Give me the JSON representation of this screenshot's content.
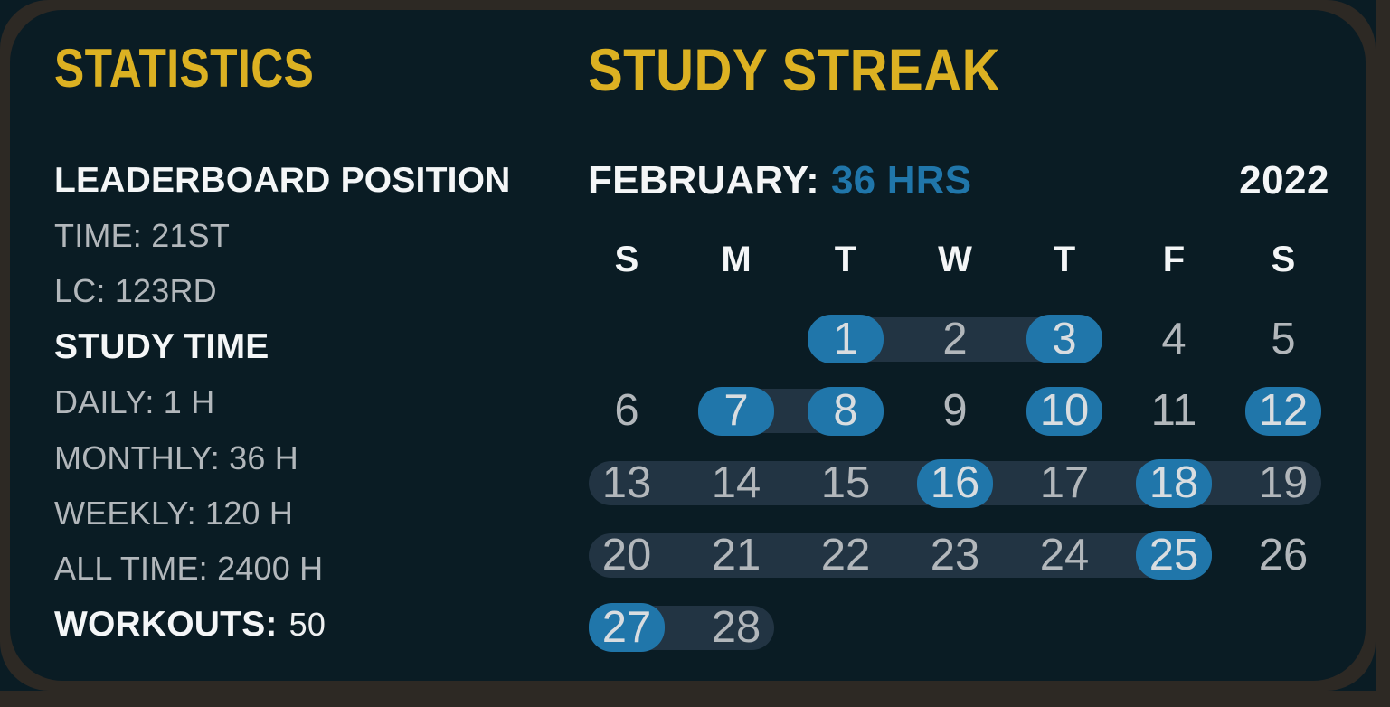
{
  "theme": {
    "navy": "#0a1c24",
    "frame": "#2d2924",
    "band": "#223443",
    "blue": "#2076aa",
    "yellow": "#dcb122",
    "white": "#f4f6f7",
    "gray": "#b2b7bb",
    "numActive": "#d9dde0"
  },
  "stats": {
    "title": "STATISTICS",
    "lines": [
      {
        "kind": "heading",
        "text": "LEADERBOARD POSITION"
      },
      {
        "kind": "value",
        "text": "TIME: 21ST"
      },
      {
        "kind": "value",
        "text": "LC: 123RD"
      },
      {
        "kind": "heading",
        "text": "STUDY TIME"
      },
      {
        "kind": "value",
        "text": "DAILY: 1 H"
      },
      {
        "kind": "value",
        "text": "MONTHLY: 36 H"
      },
      {
        "kind": "value",
        "text": "WEEKLY: 120 H"
      },
      {
        "kind": "value",
        "text": "ALL TIME: 2400 H"
      },
      {
        "kind": "mixed",
        "label": "WORKOUTS:",
        "value": "50"
      }
    ]
  },
  "streak": {
    "title": "STUDY STREAK",
    "month_label": "FEBRUARY:",
    "month_total": "36 HRS",
    "year": "2022",
    "calendar": {
      "day_headers": [
        "S",
        "M",
        "T",
        "W",
        "T",
        "F",
        "S"
      ],
      "first_day_column": 2,
      "num_days": 28,
      "active_days": [
        1,
        3,
        7,
        8,
        10,
        12,
        16,
        18,
        25,
        27
      ],
      "streak_ranges": [
        [
          1,
          3
        ],
        [
          7,
          8
        ],
        [
          13,
          19
        ],
        [
          20,
          25
        ],
        [
          27,
          28
        ]
      ]
    }
  }
}
